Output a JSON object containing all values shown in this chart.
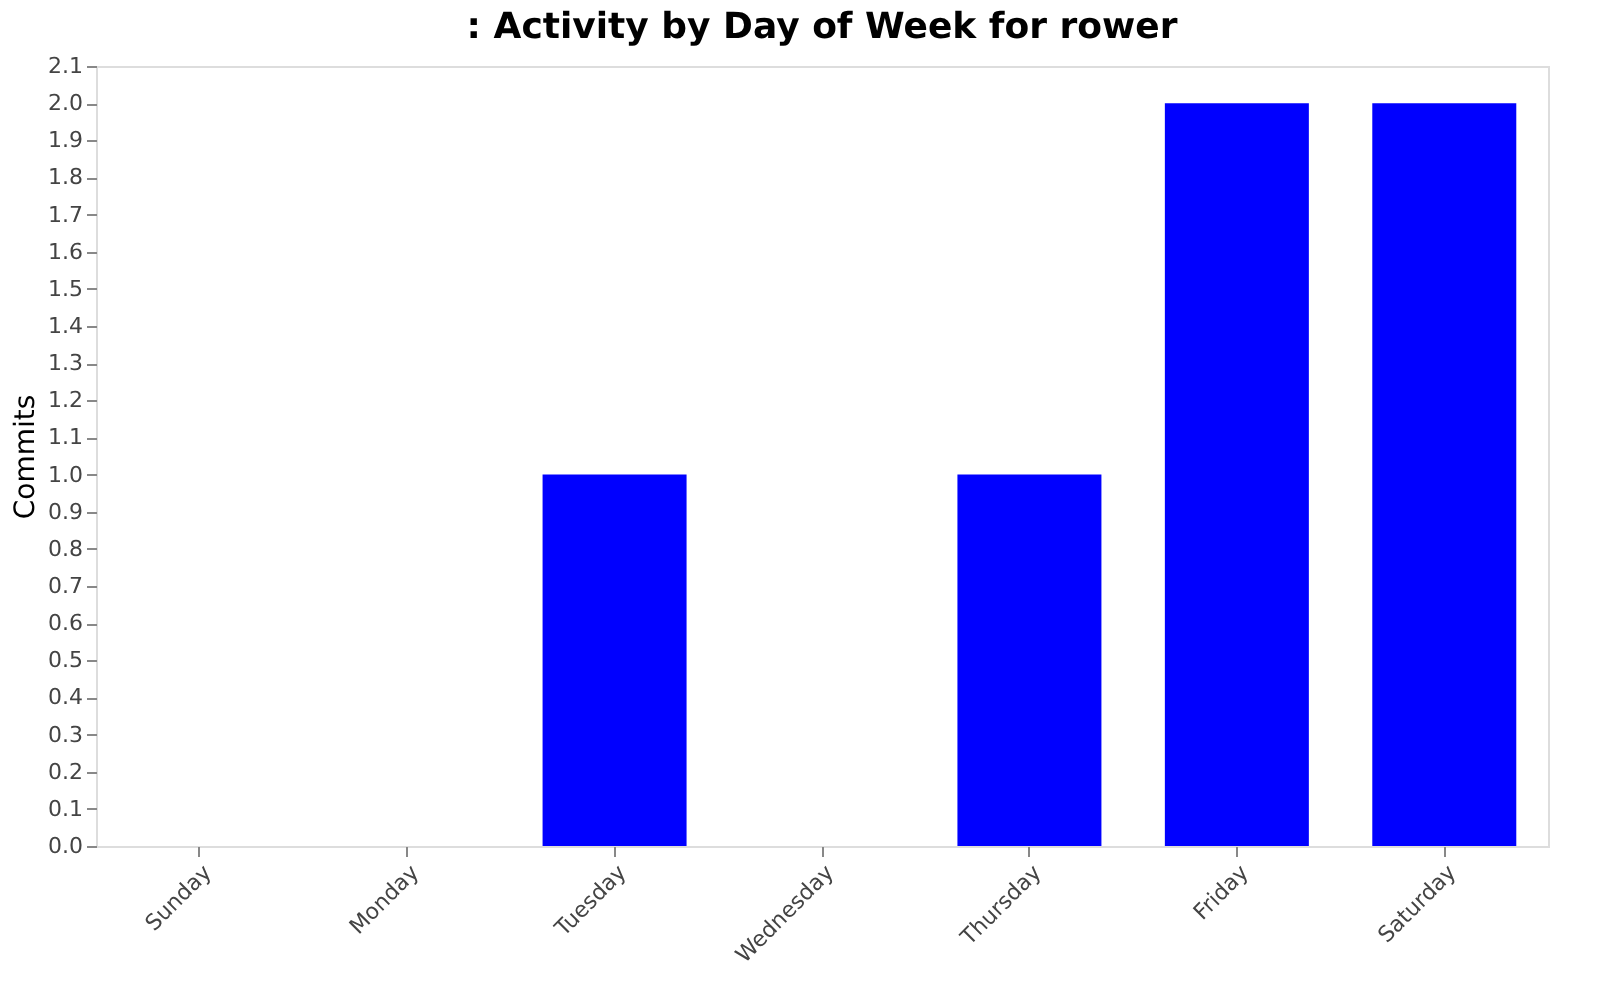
{
  "chart_data": {
    "type": "bar",
    "title": ": Activity by Day of Week for rower",
    "ylabel": "Commits",
    "categories": [
      "Sunday",
      "Monday",
      "Tuesday",
      "Wednesday",
      "Thursday",
      "Friday",
      "Saturday"
    ],
    "values": [
      0,
      0,
      1,
      0,
      1,
      2,
      2
    ],
    "color": "#0000ff",
    "ylim": [
      0,
      2.1
    ],
    "yticks": [
      {
        "value": 0,
        "label": "0.0"
      },
      0.1,
      0.2,
      0.3,
      0.4,
      0.5,
      0.6,
      0.7,
      0.8,
      0.9,
      {
        "value": 1,
        "label": "1.0"
      },
      1.1,
      1.2,
      1.3,
      1.4,
      1.5,
      1.6,
      1.7,
      1.8,
      1.9,
      {
        "value": 2,
        "label": "2.0"
      },
      2.1
    ],
    "grid": false
  }
}
